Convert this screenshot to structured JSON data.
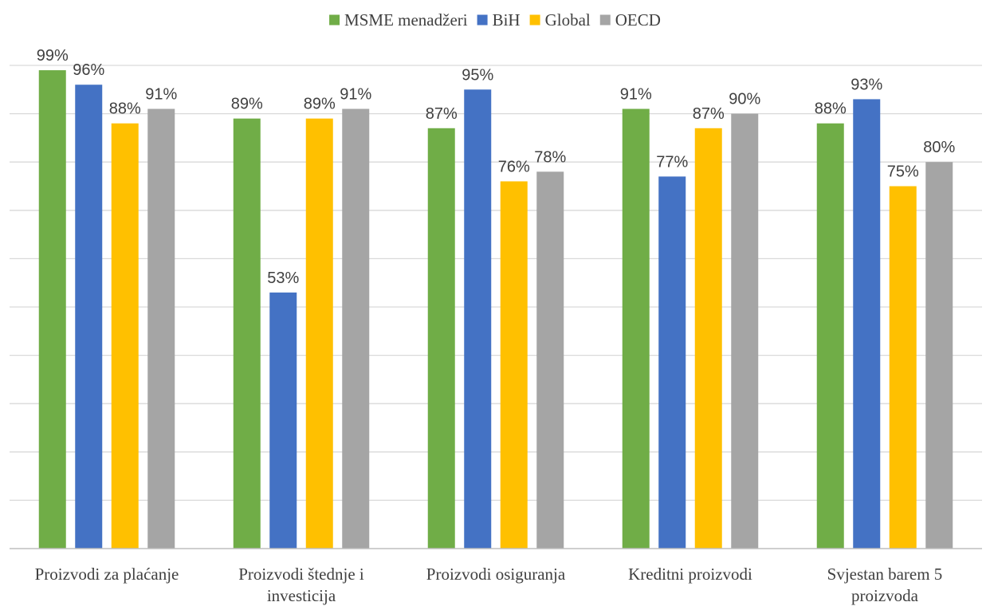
{
  "chart_data": {
    "type": "bar",
    "categories": [
      [
        "Proizvodi za plaćanje"
      ],
      [
        "Proizvodi štednje i",
        "investicija"
      ],
      [
        "Proizvodi osiguranja"
      ],
      [
        "Kreditni proizvodi"
      ],
      [
        "Svjestan barem 5",
        "proizvoda"
      ]
    ],
    "series": [
      {
        "name": "MSME menadžeri",
        "color": "#70ad47",
        "values": [
          99,
          89,
          87,
          91,
          88
        ],
        "labels": [
          "99%",
          "89%",
          "87%",
          "91%",
          "88%"
        ]
      },
      {
        "name": "BiH",
        "color": "#4472c4",
        "values": [
          96,
          53,
          95,
          77,
          93
        ],
        "labels": [
          "96%",
          "53%",
          "95%",
          "77%",
          "93%"
        ]
      },
      {
        "name": "Global",
        "color": "#ffc000",
        "values": [
          88,
          89,
          76,
          87,
          75
        ],
        "labels": [
          "88%",
          "89%",
          "76%",
          "87%",
          "75%"
        ]
      },
      {
        "name": "OECD",
        "color": "#a5a5a5",
        "values": [
          91,
          91,
          78,
          90,
          80
        ],
        "labels": [
          "91%",
          "91%",
          "78%",
          "90%",
          "80%"
        ]
      }
    ],
    "ylim": [
      0,
      100
    ],
    "gridlines": 10,
    "legend_position": "top"
  }
}
